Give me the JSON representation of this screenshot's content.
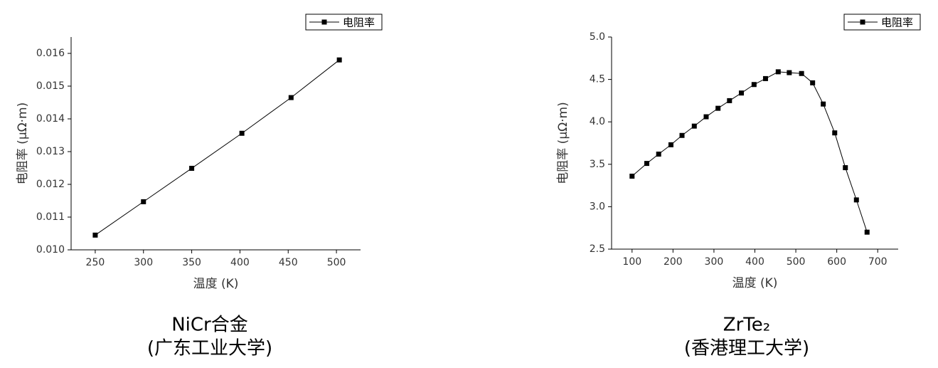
{
  "chart_data": [
    {
      "type": "line",
      "caption": [
        "NiCr合金",
        "(广东工业大学)"
      ],
      "x_label": "温度 (K)",
      "y_label": "电阻率 (μΩ·m)",
      "series": [
        {
          "name": "电阻率",
          "color": "#000000",
          "x": [
            250,
            300,
            350,
            402,
            453,
            503
          ],
          "values": [
            0.01045,
            0.01147,
            0.01249,
            0.01356,
            0.01465,
            0.0158
          ]
        }
      ],
      "xlim": [
        225,
        525
      ],
      "xticks": [
        250,
        300,
        350,
        400,
        450,
        500
      ],
      "ylim": [
        0.01,
        0.0165
      ],
      "yticks": [
        {
          "value": 0.01,
          "label": "0.010"
        },
        {
          "value": 0.011,
          "label": "0.011"
        },
        {
          "value": 0.012,
          "label": "0.012"
        },
        {
          "value": 0.013,
          "label": "0.013"
        },
        {
          "value": 0.014,
          "label": "0.014"
        },
        {
          "value": 0.015,
          "label": "0.015"
        },
        {
          "value": 0.016,
          "label": "0.016"
        }
      ],
      "legend": "top-right",
      "grid": false
    },
    {
      "type": "line",
      "caption": [
        "ZrTe₂",
        "(香港理工大学)"
      ],
      "x_label": "温度 (K)",
      "y_label": "电阻率 (μΩ·m)",
      "series": [
        {
          "name": "电阻率",
          "color": "#000000",
          "x": [
            100,
            136,
            165,
            195,
            222,
            252,
            281,
            310,
            338,
            367,
            398,
            426,
            457,
            484,
            514,
            541,
            567,
            595,
            621,
            648,
            674
          ],
          "values": [
            3.36,
            3.51,
            3.62,
            3.73,
            3.84,
            3.95,
            4.06,
            4.16,
            4.25,
            4.34,
            4.44,
            4.51,
            4.59,
            4.58,
            4.57,
            4.46,
            4.21,
            3.87,
            3.46,
            3.08,
            2.7
          ]
        }
      ],
      "xlim": [
        50,
        750
      ],
      "xticks": [
        100,
        200,
        300,
        400,
        500,
        600,
        700
      ],
      "ylim": [
        2.5,
        5.0
      ],
      "yticks": [
        2.5,
        {
          "value": 3.0,
          "label": "3.0"
        },
        3.5,
        {
          "value": 4.0,
          "label": "4.0"
        },
        4.5,
        {
          "value": 5.0,
          "label": "5.0"
        }
      ],
      "legend": "top-right",
      "grid": false
    }
  ]
}
